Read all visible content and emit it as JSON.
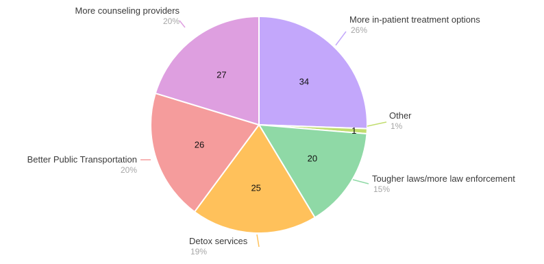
{
  "chart_data": {
    "type": "pie",
    "title": "",
    "slices": [
      {
        "label": "More in-patient treatment options",
        "value": 34,
        "percent_label": "26%",
        "color": "#c3a7fb"
      },
      {
        "label": "Other",
        "value": 1,
        "percent_label": "1%",
        "color": "#c1dd6e"
      },
      {
        "label": "Tougher laws/more law enforcement",
        "value": 20,
        "percent_label": "15%",
        "color": "#8fd9a6"
      },
      {
        "label": "Detox services",
        "value": 25,
        "percent_label": "19%",
        "color": "#ffc15b"
      },
      {
        "label": "Better Public Transportation",
        "value": 26,
        "percent_label": "20%",
        "color": "#f59c9c"
      },
      {
        "label": "More counseling providers",
        "value": 27,
        "percent_label": "20%",
        "color": "#de9fe0"
      }
    ],
    "legend": "none"
  }
}
